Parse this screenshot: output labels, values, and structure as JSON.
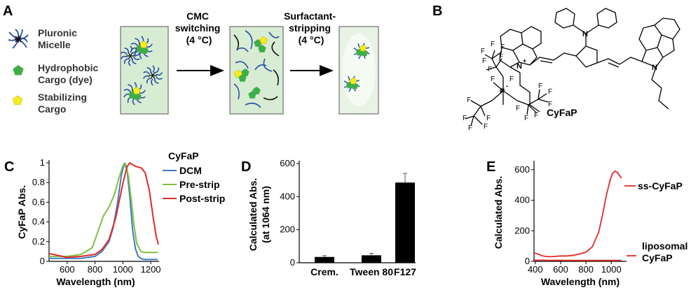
{
  "panels": {
    "a": "A",
    "b": "B",
    "c": "C",
    "d": "D",
    "e": "E"
  },
  "panel_a": {
    "legend": [
      {
        "line1": "Pluronic",
        "line2": "Micelle",
        "icon": "micelle-icon"
      },
      {
        "line1": "Hydrophobic",
        "line2": "Cargo (dye)",
        "icon": "green-pentagon-icon"
      },
      {
        "line1": "Stabilizing",
        "line2": "Cargo",
        "icon": "yellow-pentagon-icon"
      }
    ],
    "step1": {
      "line1": "CMC",
      "line2": "switching",
      "line3": "(4 °C)"
    },
    "step2": {
      "line1": "Surfactant-",
      "line2": "stripping",
      "line3": "(4 °C)"
    },
    "colors": {
      "box_fill": "#d7ecd3",
      "polymer": "#2b4fa8",
      "dye": "#3fae49",
      "stabilizer": "#f6ec1d"
    }
  },
  "panel_b": {
    "compound": "CyFaP",
    "atoms": {
      "n": "N",
      "n_plus": "N",
      "plus": "+",
      "p": "P",
      "f": "F",
      "minus": "-"
    }
  },
  "chart_data": [
    {
      "type": "line",
      "legend_title": "CyFaP",
      "xlabel": "Wavelength (nm)",
      "ylabel": "CyFaP Abs.",
      "xlim": [
        470,
        1260
      ],
      "ylim": [
        0,
        1.0
      ],
      "xticks": [
        "600",
        "800",
        "1000",
        "1200"
      ],
      "xtick_values": [
        600,
        800,
        1000,
        1200
      ],
      "yticks": [
        "0",
        "0.2",
        "0.4",
        "0.6",
        "0.8",
        "1"
      ],
      "ytick_values": [
        0,
        0.2,
        0.4,
        0.6,
        0.8,
        1.0
      ],
      "series": [
        {
          "name": "DCM",
          "color": "#3c7dc4",
          "x": [
            470,
            600,
            700,
            800,
            850,
            900,
            930,
            960,
            990,
            1010,
            1030,
            1050,
            1070,
            1090,
            1110,
            1130,
            1150,
            1200,
            1250
          ],
          "y": [
            0.03,
            0.03,
            0.03,
            0.05,
            0.1,
            0.2,
            0.34,
            0.58,
            0.88,
            0.99,
            0.93,
            0.65,
            0.32,
            0.13,
            0.05,
            0.03,
            0.02,
            0.02,
            0.02
          ]
        },
        {
          "name": "Pre-strip",
          "color": "#7fbf3f",
          "x": [
            470,
            600,
            700,
            780,
            820,
            860,
            900,
            940,
            970,
            1000,
            1020,
            1040,
            1060,
            1080,
            1100,
            1130,
            1150,
            1200,
            1250
          ],
          "y": [
            0.05,
            0.05,
            0.07,
            0.14,
            0.3,
            0.46,
            0.55,
            0.68,
            0.84,
            0.97,
            0.99,
            0.86,
            0.62,
            0.36,
            0.18,
            0.1,
            0.09,
            0.09,
            0.09
          ]
        },
        {
          "name": "Post-strip",
          "color": "#e02a2a",
          "x": [
            470,
            600,
            700,
            800,
            850,
            900,
            950,
            1000,
            1030,
            1050,
            1070,
            1100,
            1130,
            1160,
            1190,
            1220,
            1240,
            1255
          ],
          "y": [
            0.08,
            0.04,
            0.05,
            0.07,
            0.12,
            0.22,
            0.45,
            0.79,
            0.96,
            1.0,
            0.98,
            0.96,
            0.95,
            0.9,
            0.72,
            0.42,
            0.25,
            0.17
          ]
        }
      ]
    },
    {
      "type": "bar",
      "categories": [
        "Crem.",
        "Tween 80",
        "F127"
      ],
      "values": [
        35,
        45,
        485
      ],
      "errors": [
        8,
        12,
        55
      ],
      "ylabel_line1": "Calculated Abs.",
      "ylabel_line2": "(at 1064 nm)",
      "ylim": [
        0,
        600
      ],
      "yticks": [
        "0",
        "200",
        "400",
        "600"
      ],
      "ytick_values": [
        0,
        200,
        400,
        600
      ],
      "color": "#000000"
    },
    {
      "type": "line",
      "xlabel": "Wavelength (nm)",
      "ylabel": "Calculated Abs.",
      "xlim": [
        390,
        1120
      ],
      "ylim": [
        0,
        640
      ],
      "xticks": [
        "400",
        "600",
        "800",
        "1000"
      ],
      "xtick_values": [
        400,
        600,
        800,
        1000
      ],
      "yticks": [
        "0",
        "200",
        "400",
        "600"
      ],
      "ytick_values": [
        0,
        200,
        400,
        600
      ],
      "series": [
        {
          "name": "ss-CyFaP",
          "color": "#e02a2a",
          "x": [
            390,
            420,
            460,
            500,
            550,
            600,
            650,
            700,
            750,
            800,
            850,
            900,
            930,
            960,
            990,
            1010,
            1030,
            1050,
            1070,
            1080
          ],
          "y": [
            55,
            48,
            35,
            30,
            32,
            35,
            35,
            40,
            48,
            60,
            95,
            190,
            300,
            430,
            530,
            575,
            590,
            580,
            555,
            545
          ]
        },
        {
          "name": "liposomal CyFaP",
          "label_line1": "liposomal",
          "label_line2": "CyFaP",
          "color": "#e02a2a",
          "x": [
            390,
            500,
            700,
            900,
            1080
          ],
          "y": [
            8,
            7,
            6,
            6,
            6
          ]
        }
      ]
    }
  ]
}
